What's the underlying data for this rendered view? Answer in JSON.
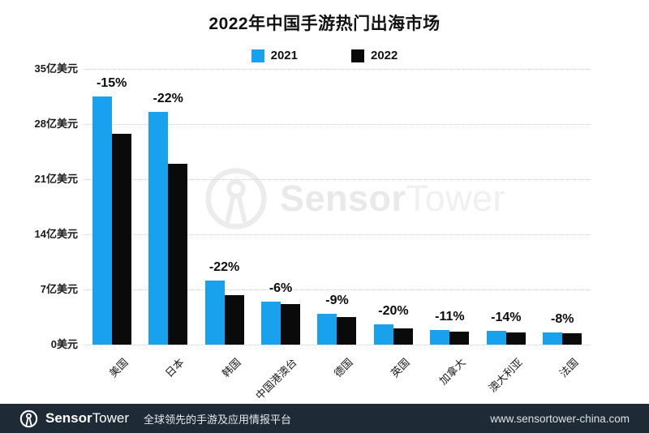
{
  "title": "2022年中国手游热门出海市场",
  "legend": [
    {
      "label": "2021",
      "color": "#18a2ed"
    },
    {
      "label": "2022",
      "color": "#0a0a0a"
    }
  ],
  "chart_data": {
    "type": "bar",
    "title": "2022年中国手游热门出海市场",
    "unit": "亿美元",
    "categories": [
      "美国",
      "日本",
      "韩国",
      "中国港澳台",
      "德国",
      "英国",
      "加拿大",
      "澳大利亚",
      "法国"
    ],
    "series": [
      {
        "name": "2021",
        "color": "#18a2ed",
        "values": [
          31.5,
          29.5,
          8.1,
          5.5,
          3.9,
          2.6,
          1.9,
          1.8,
          1.5
        ]
      },
      {
        "name": "2022",
        "color": "#0a0a0a",
        "values": [
          26.8,
          23.0,
          6.3,
          5.1,
          3.5,
          2.1,
          1.7,
          1.55,
          1.4
        ]
      }
    ],
    "change_labels": [
      "-15%",
      "-22%",
      "-22%",
      "-6%",
      "-9%",
      "-20%",
      "-11%",
      "-14%",
      "-8%"
    ],
    "yticks": [
      {
        "value": 0,
        "label": "0美元"
      },
      {
        "value": 7,
        "label": "7亿美元"
      },
      {
        "value": 14,
        "label": "14亿美元"
      },
      {
        "value": 21,
        "label": "21亿美元"
      },
      {
        "value": 28,
        "label": "28亿美元"
      },
      {
        "value": 35,
        "label": "35亿美元"
      }
    ],
    "ylim": [
      0,
      35
    ],
    "grid": "horizontal-dotted",
    "legend_position": "top-center",
    "xlabel_rotation": -45
  },
  "watermark": {
    "bold": "Sensor",
    "light": "Tower"
  },
  "footer": {
    "brand_bold": "Sensor",
    "brand_light": "Tower",
    "tagline": "全球领先的手游及应用情报平台",
    "url": "www.sensortower-china.com"
  }
}
